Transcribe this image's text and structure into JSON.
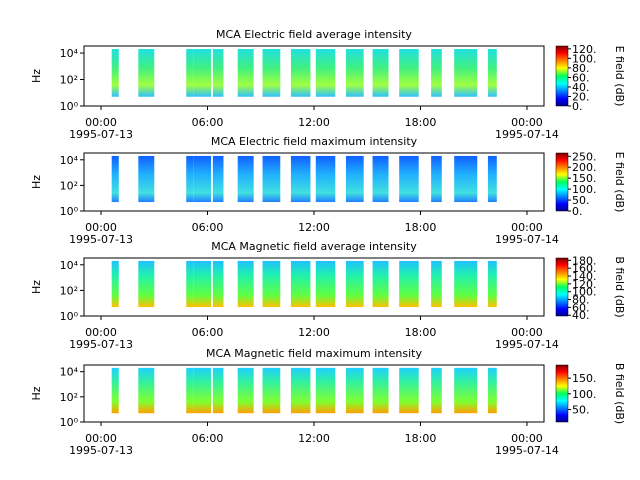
{
  "chart_data": [
    {
      "type": "spectrogram",
      "title": "MCA  Electric field average intensity",
      "ylabel": "Hz",
      "log_y": true,
      "xlim": [
        -0.96,
        24.96
      ],
      "xticks": [
        {
          "value": 0,
          "label": "00:00"
        },
        {
          "value": 6,
          "label": "06:00"
        },
        {
          "value": 12,
          "label": "12:00"
        },
        {
          "value": 18,
          "label": "18:00"
        },
        {
          "value": 24,
          "label": "00:00"
        }
      ],
      "date_ticks": [
        {
          "value": 0,
          "label": "1995-07-13"
        },
        {
          "value": 24,
          "label": "1995-07-14"
        }
      ],
      "ylim": [
        1,
        34000
      ],
      "yticks": [
        {
          "value": 1,
          "label": "10⁰"
        },
        {
          "value": 100,
          "label": "10²"
        },
        {
          "value": 10000,
          "label": "10⁴"
        }
      ],
      "frange": [
        5,
        20000
      ],
      "segments": [
        [
          0.6,
          1.0
        ],
        [
          2.1,
          3.0
        ],
        [
          4.8,
          5.2
        ],
        [
          5.2,
          6.2
        ],
        [
          6.3,
          6.9
        ],
        [
          7.7,
          8.6
        ],
        [
          9.1,
          10.1
        ],
        [
          10.7,
          11.8
        ],
        [
          12.1,
          13.2
        ],
        [
          13.8,
          14.8
        ],
        [
          15.3,
          16.2
        ],
        [
          16.8,
          17.9
        ],
        [
          18.6,
          19.2
        ],
        [
          19.9,
          21.2
        ],
        [
          21.8,
          22.3
        ]
      ],
      "colorbar": {
        "label": "E field (dB)",
        "lim": [
          0,
          126
        ],
        "ticks": [
          {
            "value": 0,
            "label": "0."
          },
          {
            "value": 20,
            "label": "20."
          },
          {
            "value": 40,
            "label": "40."
          },
          {
            "value": 60,
            "label": "60."
          },
          {
            "value": 80,
            "label": "80."
          },
          {
            "value": 100,
            "label": "100."
          },
          {
            "value": 120,
            "label": "120."
          }
        ]
      }
    },
    {
      "type": "spectrogram",
      "title": "MCA  Electric field maximum intensity",
      "ylabel": "Hz",
      "log_y": true,
      "xlim": [
        -0.96,
        24.96
      ],
      "xticks": [
        {
          "value": 0,
          "label": "00:00"
        },
        {
          "value": 6,
          "label": "06:00"
        },
        {
          "value": 12,
          "label": "12:00"
        },
        {
          "value": 18,
          "label": "18:00"
        },
        {
          "value": 24,
          "label": "00:00"
        }
      ],
      "date_ticks": [
        {
          "value": 0,
          "label": "1995-07-13"
        },
        {
          "value": 24,
          "label": "1995-07-14"
        }
      ],
      "ylim": [
        1,
        34000
      ],
      "yticks": [
        {
          "value": 1,
          "label": "10⁰"
        },
        {
          "value": 100,
          "label": "10²"
        },
        {
          "value": 10000,
          "label": "10⁴"
        }
      ],
      "frange": [
        5,
        20000
      ],
      "segments": [
        [
          0.6,
          1.0
        ],
        [
          2.1,
          3.0
        ],
        [
          4.8,
          5.2
        ],
        [
          5.2,
          6.2
        ],
        [
          6.3,
          6.9
        ],
        [
          7.7,
          8.6
        ],
        [
          9.1,
          10.1
        ],
        [
          10.7,
          11.8
        ],
        [
          12.1,
          13.2
        ],
        [
          13.8,
          14.8
        ],
        [
          15.3,
          16.2
        ],
        [
          16.8,
          17.9
        ],
        [
          18.6,
          19.2
        ],
        [
          19.9,
          21.2
        ],
        [
          21.8,
          22.3
        ]
      ],
      "colorbar": {
        "label": "E field (dB)",
        "lim": [
          0,
          265
        ],
        "ticks": [
          {
            "value": 0,
            "label": "0."
          },
          {
            "value": 50,
            "label": "50."
          },
          {
            "value": 100,
            "label": "100."
          },
          {
            "value": 150,
            "label": "150."
          },
          {
            "value": 200,
            "label": "200."
          },
          {
            "value": 250,
            "label": "250."
          }
        ]
      }
    },
    {
      "type": "spectrogram",
      "title": "MCA  Magnetic field average intensity",
      "ylabel": "Hz",
      "log_y": true,
      "xlim": [
        -0.96,
        24.96
      ],
      "xticks": [
        {
          "value": 0,
          "label": "00:00"
        },
        {
          "value": 6,
          "label": "06:00"
        },
        {
          "value": 12,
          "label": "12:00"
        },
        {
          "value": 18,
          "label": "18:00"
        },
        {
          "value": 24,
          "label": "00:00"
        }
      ],
      "date_ticks": [
        {
          "value": 0,
          "label": "1995-07-13"
        },
        {
          "value": 24,
          "label": "1995-07-14"
        }
      ],
      "ylim": [
        1,
        34000
      ],
      "yticks": [
        {
          "value": 1,
          "label": "10⁰"
        },
        {
          "value": 100,
          "label": "10²"
        },
        {
          "value": 10000,
          "label": "10⁴"
        }
      ],
      "frange": [
        5,
        20000
      ],
      "segments": [
        [
          0.6,
          1.0
        ],
        [
          2.1,
          3.0
        ],
        [
          4.8,
          5.2
        ],
        [
          5.2,
          6.2
        ],
        [
          6.3,
          6.9
        ],
        [
          7.7,
          8.6
        ],
        [
          9.1,
          10.1
        ],
        [
          10.7,
          11.8
        ],
        [
          12.1,
          13.2
        ],
        [
          13.8,
          14.8
        ],
        [
          15.3,
          16.2
        ],
        [
          16.8,
          17.9
        ],
        [
          18.6,
          19.2
        ],
        [
          19.9,
          21.2
        ],
        [
          21.8,
          22.3
        ]
      ],
      "colorbar": {
        "label": "B field (dB)",
        "lim": [
          38,
          186
        ],
        "ticks": [
          {
            "value": 40,
            "label": "40."
          },
          {
            "value": 60,
            "label": "60."
          },
          {
            "value": 80,
            "label": "80."
          },
          {
            "value": 100,
            "label": "100."
          },
          {
            "value": 120,
            "label": "120."
          },
          {
            "value": 140,
            "label": "140."
          },
          {
            "value": 160,
            "label": "160."
          },
          {
            "value": 180,
            "label": "180."
          }
        ]
      }
    },
    {
      "type": "spectrogram",
      "title": "MCA  Magnetic field maximum intensity",
      "ylabel": "Hz",
      "log_y": true,
      "xlim": [
        -0.96,
        24.96
      ],
      "xticks": [
        {
          "value": 0,
          "label": "00:00"
        },
        {
          "value": 6,
          "label": "06:00"
        },
        {
          "value": 12,
          "label": "12:00"
        },
        {
          "value": 18,
          "label": "18:00"
        },
        {
          "value": 24,
          "label": "00:00"
        }
      ],
      "date_ticks": [
        {
          "value": 0,
          "label": "1995-07-13"
        },
        {
          "value": 24,
          "label": "1995-07-14"
        }
      ],
      "ylim": [
        1,
        34000
      ],
      "yticks": [
        {
          "value": 1,
          "label": "10⁰"
        },
        {
          "value": 100,
          "label": "10²"
        },
        {
          "value": 10000,
          "label": "10⁴"
        }
      ],
      "frange": [
        5,
        20000
      ],
      "segments": [
        [
          0.6,
          1.0
        ],
        [
          2.1,
          3.0
        ],
        [
          4.8,
          5.2
        ],
        [
          5.2,
          6.2
        ],
        [
          6.3,
          6.9
        ],
        [
          7.7,
          8.6
        ],
        [
          9.1,
          10.1
        ],
        [
          10.7,
          11.8
        ],
        [
          12.1,
          13.2
        ],
        [
          13.8,
          14.8
        ],
        [
          15.3,
          16.2
        ],
        [
          16.8,
          17.9
        ],
        [
          18.6,
          19.2
        ],
        [
          19.9,
          21.2
        ],
        [
          21.8,
          22.3
        ]
      ],
      "colorbar": {
        "label": "B field (dB)",
        "lim": [
          10,
          192
        ],
        "ticks": [
          {
            "value": 50,
            "label": "50."
          },
          {
            "value": 100,
            "label": "100."
          },
          {
            "value": 150,
            "label": "150."
          }
        ]
      }
    }
  ]
}
